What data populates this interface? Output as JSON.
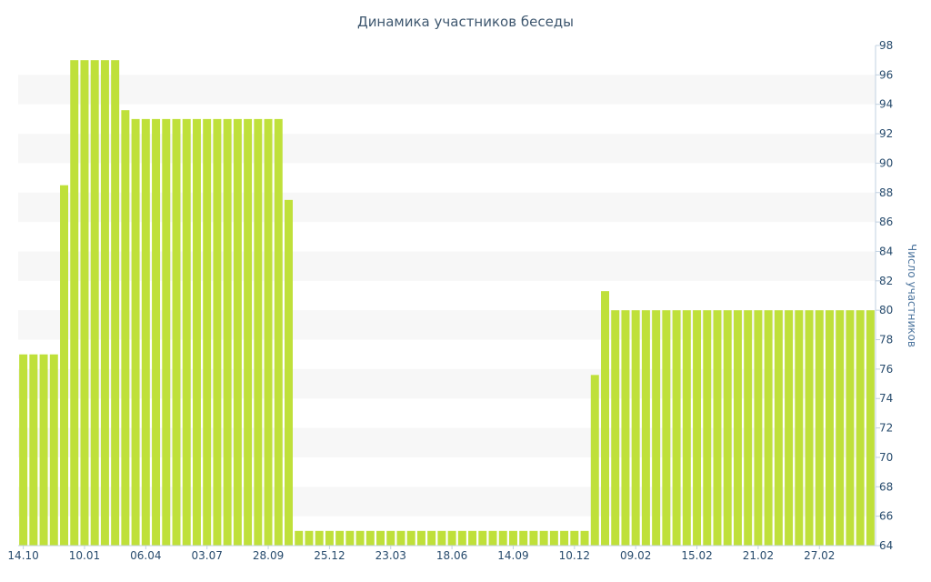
{
  "chart_data": {
    "type": "bar",
    "title": "Динамика участников беседы",
    "xlabel": "",
    "ylabel": "Число участников",
    "ylim": [
      64,
      98
    ],
    "y_axis_side": "right",
    "y_ticks": [
      64,
      66,
      68,
      70,
      72,
      74,
      76,
      78,
      80,
      82,
      84,
      86,
      88,
      90,
      92,
      94,
      96,
      98
    ],
    "x_tick_labels": [
      {
        "label": "14.10",
        "index": 0
      },
      {
        "label": "10.01",
        "index": 6
      },
      {
        "label": "06.04",
        "index": 12
      },
      {
        "label": "03.07",
        "index": 18
      },
      {
        "label": "28.09",
        "index": 24
      },
      {
        "label": "25.12",
        "index": 30
      },
      {
        "label": "23.03",
        "index": 36
      },
      {
        "label": "18.06",
        "index": 42
      },
      {
        "label": "14.09",
        "index": 48
      },
      {
        "label": "10.12",
        "index": 54
      },
      {
        "label": "09.02",
        "index": 60
      },
      {
        "label": "15.02",
        "index": 66
      },
      {
        "label": "21.02",
        "index": 72
      },
      {
        "label": "27.02",
        "index": 78
      }
    ],
    "grid": true,
    "bar_color": "#bfe03a",
    "band_color": "#f7f7f7",
    "values": [
      77,
      77,
      77,
      77,
      88.5,
      97,
      97,
      97,
      97,
      97,
      93.6,
      93,
      93,
      93,
      93,
      93,
      93,
      93,
      93,
      93,
      93,
      93,
      93,
      93,
      93,
      93,
      87.5,
      65,
      65,
      65,
      65,
      65,
      65,
      65,
      65,
      65,
      65,
      65,
      65,
      65,
      65,
      65,
      65,
      65,
      65,
      65,
      65,
      65,
      65,
      65,
      65,
      65,
      65,
      65,
      65,
      65,
      75.6,
      81.3,
      80,
      80,
      80,
      80,
      80,
      80,
      80,
      80,
      80,
      80,
      80,
      80,
      80,
      80,
      80,
      80,
      80,
      80,
      80,
      80,
      80,
      80,
      80,
      80,
      80,
      80
    ]
  }
}
